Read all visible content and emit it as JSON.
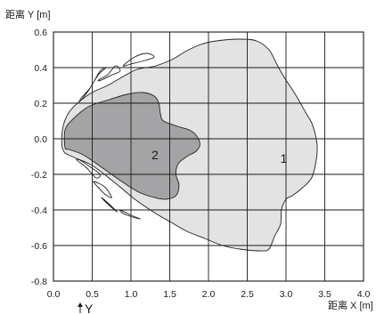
{
  "chart_data": {
    "type": "area",
    "ylabel": "距离 Y [m]",
    "xlabel": "距离 X [m]",
    "y_marker_label": "Y",
    "x_ticks": [
      "0.0",
      "0.5",
      "1.0",
      "1.5",
      "2.0",
      "2.5",
      "3.0",
      "3.5",
      "4.0"
    ],
    "y_ticks": [
      "0.6",
      "0.4",
      "0.2",
      "0.0",
      "-0.2",
      "-0.4",
      "-0.6",
      "-0.8"
    ],
    "xlim": [
      0.0,
      4.0
    ],
    "ylim": [
      -0.8,
      0.6
    ],
    "grid": true,
    "colors": {
      "region_1": "#e3e3e4",
      "region_2": "#a4a4a6",
      "lobes": "#ffffff"
    },
    "series": [
      {
        "name": "1",
        "label_pos": [
          2.97,
          -0.11
        ],
        "points": [
          [
            0.12,
            0.06
          ],
          [
            0.22,
            0.16
          ],
          [
            0.46,
            0.25
          ],
          [
            0.7,
            0.3
          ],
          [
            0.9,
            0.35
          ],
          [
            1.08,
            0.39
          ],
          [
            1.32,
            0.41
          ],
          [
            1.55,
            0.45
          ],
          [
            1.7,
            0.49
          ],
          [
            1.9,
            0.53
          ],
          [
            2.1,
            0.55
          ],
          [
            2.4,
            0.56
          ],
          [
            2.62,
            0.55
          ],
          [
            2.78,
            0.5
          ],
          [
            2.88,
            0.42
          ],
          [
            2.97,
            0.35
          ],
          [
            3.12,
            0.25
          ],
          [
            3.25,
            0.15
          ],
          [
            3.34,
            0.08
          ],
          [
            3.4,
            -0.03
          ],
          [
            3.39,
            -0.12
          ],
          [
            3.33,
            -0.22
          ],
          [
            3.2,
            -0.28
          ],
          [
            3.08,
            -0.32
          ],
          [
            3.0,
            -0.34
          ],
          [
            2.94,
            -0.4
          ],
          [
            2.93,
            -0.48
          ],
          [
            2.85,
            -0.55
          ],
          [
            2.78,
            -0.62
          ],
          [
            2.66,
            -0.63
          ],
          [
            2.4,
            -0.62
          ],
          [
            2.18,
            -0.6
          ],
          [
            1.95,
            -0.56
          ],
          [
            1.72,
            -0.52
          ],
          [
            1.52,
            -0.47
          ],
          [
            1.32,
            -0.42
          ],
          [
            1.05,
            -0.34
          ],
          [
            0.8,
            -0.25
          ],
          [
            0.5,
            -0.15
          ],
          [
            0.24,
            -0.1
          ],
          [
            0.12,
            -0.06
          ]
        ]
      },
      {
        "name": "2",
        "label_pos": [
          1.31,
          -0.09
        ],
        "points": [
          [
            0.15,
            0.05
          ],
          [
            0.25,
            0.11
          ],
          [
            0.45,
            0.18
          ],
          [
            0.72,
            0.22
          ],
          [
            0.95,
            0.25
          ],
          [
            1.15,
            0.26
          ],
          [
            1.3,
            0.24
          ],
          [
            1.36,
            0.2
          ],
          [
            1.38,
            0.14
          ],
          [
            1.42,
            0.1
          ],
          [
            1.6,
            0.07
          ],
          [
            1.75,
            0.05
          ],
          [
            1.84,
            0.02
          ],
          [
            1.89,
            -0.03
          ],
          [
            1.84,
            -0.07
          ],
          [
            1.72,
            -0.1
          ],
          [
            1.61,
            -0.14
          ],
          [
            1.58,
            -0.2
          ],
          [
            1.62,
            -0.26
          ],
          [
            1.58,
            -0.32
          ],
          [
            1.45,
            -0.34
          ],
          [
            1.3,
            -0.33
          ],
          [
            1.1,
            -0.3
          ],
          [
            0.88,
            -0.24
          ],
          [
            0.62,
            -0.16
          ],
          [
            0.38,
            -0.09
          ],
          [
            0.2,
            -0.06
          ],
          [
            0.15,
            -0.05
          ]
        ]
      }
    ],
    "side_lobes": [
      [
        [
          0.34,
          0.21
        ],
        [
          0.45,
          0.27
        ],
        [
          0.58,
          0.36
        ],
        [
          0.68,
          0.4
        ],
        [
          0.6,
          0.38
        ],
        [
          0.48,
          0.29
        ],
        [
          0.36,
          0.23
        ]
      ],
      [
        [
          0.58,
          0.33
        ],
        [
          0.7,
          0.36
        ],
        [
          0.8,
          0.41
        ],
        [
          0.86,
          0.38
        ],
        [
          0.76,
          0.36
        ],
        [
          0.62,
          0.33
        ]
      ],
      [
        [
          0.9,
          0.41
        ],
        [
          1.05,
          0.46
        ],
        [
          1.2,
          0.48
        ],
        [
          1.3,
          0.46
        ],
        [
          1.18,
          0.44
        ],
        [
          1.0,
          0.42
        ]
      ],
      [
        [
          0.3,
          -0.12
        ],
        [
          0.42,
          -0.16
        ],
        [
          0.55,
          -0.22
        ],
        [
          0.6,
          -0.2
        ],
        [
          0.48,
          -0.16
        ],
        [
          0.34,
          -0.12
        ]
      ],
      [
        [
          0.52,
          -0.24
        ],
        [
          0.66,
          -0.27
        ],
        [
          0.75,
          -0.33
        ],
        [
          0.66,
          -0.31
        ],
        [
          0.55,
          -0.26
        ]
      ],
      [
        [
          0.62,
          -0.33
        ],
        [
          0.7,
          -0.36
        ],
        [
          0.82,
          -0.41
        ],
        [
          0.76,
          -0.39
        ],
        [
          0.66,
          -0.35
        ]
      ],
      [
        [
          0.86,
          -0.4
        ],
        [
          1.0,
          -0.43
        ],
        [
          1.12,
          -0.45
        ],
        [
          1.02,
          -0.44
        ],
        [
          0.9,
          -0.42
        ]
      ]
    ]
  }
}
